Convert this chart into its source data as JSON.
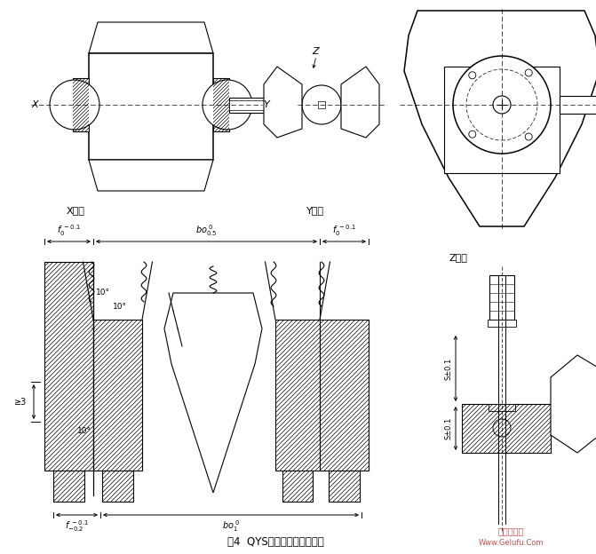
{
  "title": "图4  QYS型减速器的支承型式",
  "watermark1": "格鲁夫机械",
  "watermark2": "Www.Gelufu.Com",
  "bg_color": "#ffffff",
  "line_color": "#000000",
  "label_x": "X放大",
  "label_y": "Y放大",
  "label_z": "Z放大",
  "angle1": "10°",
  "angle2": "10°",
  "angle3": "10°",
  "dim_gt3": "≥3",
  "dim_s1": "S±0.1",
  "dim_s2": "S±0.1"
}
